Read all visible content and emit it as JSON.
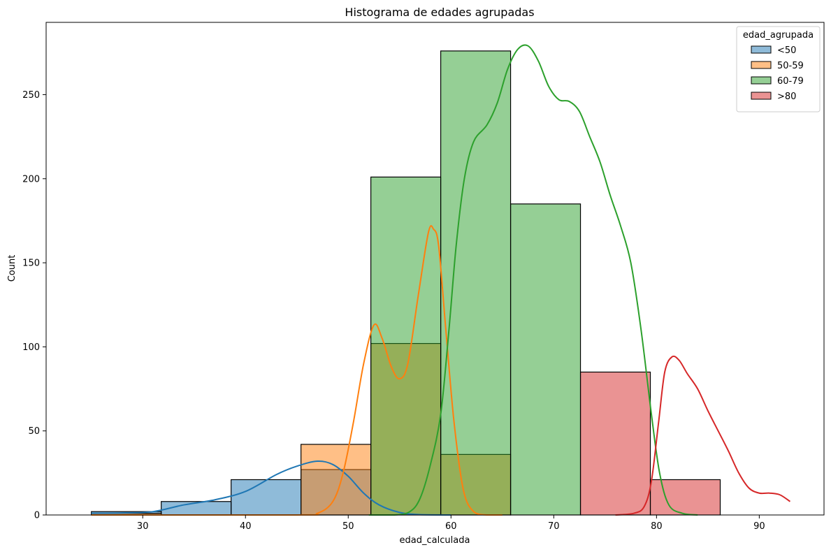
{
  "chart_data": {
    "type": "histogram",
    "title": "Histograma de edades agrupadas",
    "xlabel": "edad_calculada",
    "ylabel": "Count",
    "xlim": [
      20.6,
      96.3
    ],
    "ylim": [
      0,
      293
    ],
    "x_ticks": [
      30,
      40,
      50,
      60,
      70,
      80,
      90
    ],
    "y_ticks": [
      0,
      50,
      100,
      150,
      200,
      250
    ],
    "grid": false,
    "legend": {
      "title": "edad_agrupada",
      "placement": "top-right"
    },
    "bin_edges": [
      25.0,
      31.8,
      38.6,
      45.4,
      52.2,
      59.0,
      65.8,
      72.6,
      79.4,
      86.2,
      93.0
    ],
    "series": [
      {
        "name": "<50",
        "color": "#1f77b4",
        "counts": [
          2,
          8,
          21,
          27,
          0,
          0,
          0,
          0,
          0,
          0
        ],
        "kde": [
          [
            25,
            1
          ],
          [
            28,
            1.2
          ],
          [
            31,
            2
          ],
          [
            34,
            6
          ],
          [
            37,
            9
          ],
          [
            40,
            14
          ],
          [
            43,
            24
          ],
          [
            45,
            29
          ],
          [
            47,
            32
          ],
          [
            48.5,
            30
          ],
          [
            50,
            23
          ],
          [
            51.5,
            13
          ],
          [
            53,
            6
          ],
          [
            55,
            1.5
          ],
          [
            57,
            0.2
          ],
          [
            60,
            0
          ]
        ]
      },
      {
        "name": "50-59",
        "color": "#ff7f0e",
        "counts": [
          1,
          0,
          0,
          42,
          102,
          36,
          0,
          0,
          0,
          0
        ],
        "kde": [
          [
            25,
            0
          ],
          [
            45,
            0
          ],
          [
            47,
            1
          ],
          [
            48.5,
            8
          ],
          [
            49.5,
            25
          ],
          [
            50.5,
            55
          ],
          [
            51.5,
            90
          ],
          [
            52.5,
            113
          ],
          [
            53.3,
            105
          ],
          [
            54.2,
            88
          ],
          [
            55,
            81
          ],
          [
            55.8,
            90
          ],
          [
            56.8,
            130
          ],
          [
            57.8,
            168
          ],
          [
            58.3,
            170
          ],
          [
            58.8,
            160
          ],
          [
            59.5,
            110
          ],
          [
            60.3,
            55
          ],
          [
            61.2,
            15
          ],
          [
            62.2,
            2
          ],
          [
            63.5,
            0
          ],
          [
            65,
            0
          ]
        ]
      },
      {
        "name": "60-79",
        "color": "#2ca02c",
        "counts": [
          0,
          0,
          0,
          0,
          201,
          276,
          185,
          0,
          0,
          0
        ],
        "kde": [
          [
            52,
            0
          ],
          [
            54.5,
            0
          ],
          [
            56,
            2
          ],
          [
            57,
            10
          ],
          [
            58,
            30
          ],
          [
            59,
            60
          ],
          [
            59.8,
            110
          ],
          [
            60.5,
            160
          ],
          [
            61.3,
            200
          ],
          [
            62.2,
            222
          ],
          [
            63.5,
            232
          ],
          [
            64.5,
            245
          ],
          [
            65.5,
            265
          ],
          [
            66.5,
            277
          ],
          [
            67.5,
            279
          ],
          [
            68.5,
            270
          ],
          [
            69.5,
            255
          ],
          [
            70.5,
            247
          ],
          [
            71.5,
            246
          ],
          [
            72.5,
            240
          ],
          [
            73.5,
            225
          ],
          [
            74.5,
            210
          ],
          [
            75.5,
            190
          ],
          [
            76.5,
            172
          ],
          [
            77.5,
            150
          ],
          [
            78.5,
            110
          ],
          [
            79.5,
            60
          ],
          [
            80.3,
            25
          ],
          [
            81.2,
            6
          ],
          [
            82.5,
            1
          ],
          [
            84,
            0
          ]
        ]
      },
      {
        "name": ">80",
        "color": "#d62728",
        "counts": [
          0,
          0,
          0,
          0,
          0,
          0,
          0,
          85,
          21,
          0
        ],
        "kde": [
          [
            76,
            0
          ],
          [
            77.8,
            1
          ],
          [
            78.8,
            5
          ],
          [
            79.5,
            20
          ],
          [
            80.2,
            55
          ],
          [
            80.8,
            85
          ],
          [
            81.5,
            94
          ],
          [
            82.2,
            92
          ],
          [
            83,
            84
          ],
          [
            84,
            75
          ],
          [
            85,
            62
          ],
          [
            86,
            50
          ],
          [
            87,
            38
          ],
          [
            88,
            25
          ],
          [
            89,
            16
          ],
          [
            90,
            13
          ],
          [
            91,
            13
          ],
          [
            92,
            12
          ],
          [
            93,
            8
          ]
        ]
      }
    ]
  }
}
